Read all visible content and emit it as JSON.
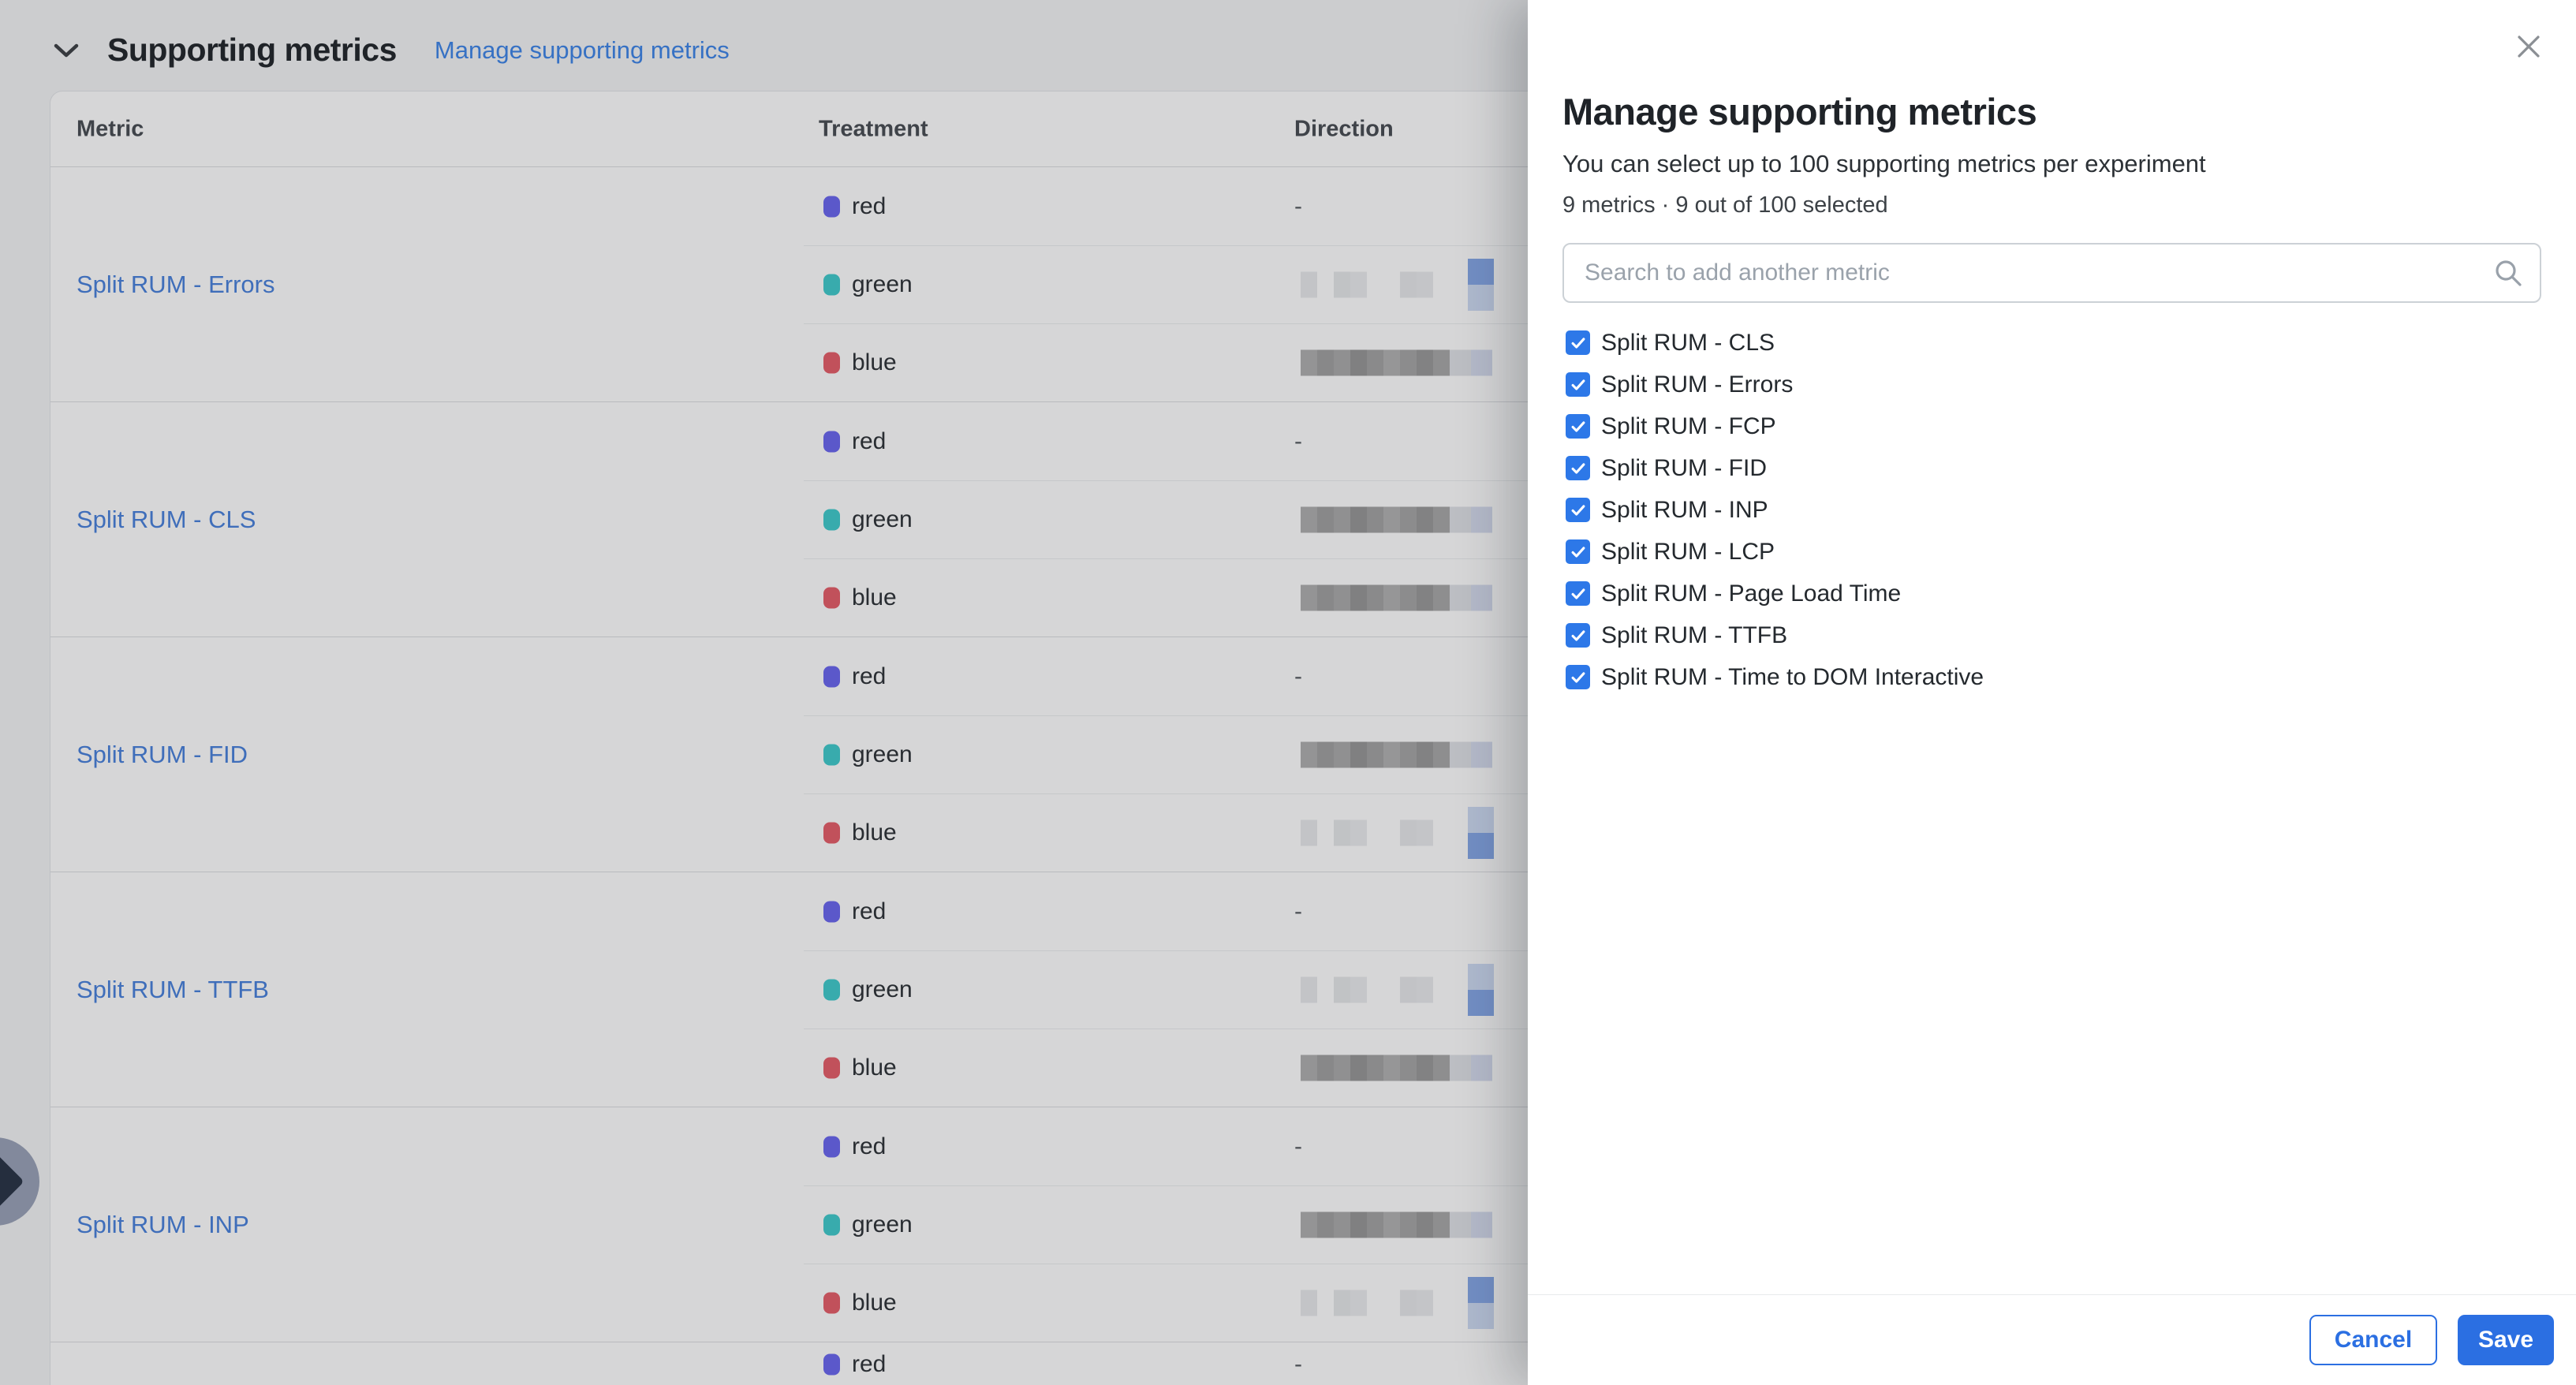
{
  "colors": {
    "accent": "#2b6fe2",
    "checkbox_blue": "#2d78e8",
    "link_blue": "#4a82dc",
    "badge_blue": "#87a9e8",
    "treatment_chips": {
      "red": "#6c68f0",
      "green": "#41cccd",
      "blue": "#e65f6a"
    }
  },
  "icons": {
    "section_chevron": "chevron-down-icon",
    "search": "search-icon",
    "close": "close-icon",
    "fab": "chevron-right-icon"
  },
  "redaction": {
    "dark_bars": [
      "#b0b0b0",
      "#a2a2a2",
      "#ababab",
      "#989898",
      "#a4a4a4",
      "#b3b3b3",
      "#a6a6a6",
      "#9a9a9a",
      "#a9a9a9"
    ],
    "faint_bars": [
      "#e9eaec",
      null,
      "#e6e8ea",
      "#ebecee",
      null,
      null,
      "#e7e9eb",
      "#eaebed",
      null
    ],
    "tail_pair": [
      "#e0e3e7",
      "#d6ddef"
    ],
    "badge_blue": "#87a9e8",
    "badge_companion": "#cfdcf4"
  },
  "section": {
    "title": "Supporting metrics",
    "manage_link": "Manage supporting metrics"
  },
  "table": {
    "columns": [
      "Metric",
      "Treatment",
      "Direction"
    ],
    "groups": [
      {
        "metric": "Split RUM - Errors",
        "rows": [
          {
            "treatment": "red",
            "direction": "-"
          },
          {
            "treatment": "green",
            "redact": {
              "bars": "faint",
              "tail": "badge-top"
            }
          },
          {
            "treatment": "blue",
            "redact": {
              "bars": "dark",
              "tail": "pair"
            }
          }
        ]
      },
      {
        "metric": "Split RUM - CLS",
        "rows": [
          {
            "treatment": "red",
            "direction": "-"
          },
          {
            "treatment": "green",
            "redact": {
              "bars": "dark",
              "tail": "pair"
            }
          },
          {
            "treatment": "blue",
            "redact": {
              "bars": "dark",
              "tail": "pair"
            }
          }
        ]
      },
      {
        "metric": "Split RUM - FID",
        "rows": [
          {
            "treatment": "red",
            "direction": "-"
          },
          {
            "treatment": "green",
            "redact": {
              "bars": "dark",
              "tail": "pair"
            }
          },
          {
            "treatment": "blue",
            "redact": {
              "bars": "faint",
              "tail": "badge-bottom"
            }
          }
        ]
      },
      {
        "metric": "Split RUM - TTFB",
        "rows": [
          {
            "treatment": "red",
            "direction": "-"
          },
          {
            "treatment": "green",
            "redact": {
              "bars": "faint",
              "tail": "badge-bottom"
            }
          },
          {
            "treatment": "blue",
            "redact": {
              "bars": "dark",
              "tail": "pair"
            }
          }
        ]
      },
      {
        "metric": "Split RUM - INP",
        "rows": [
          {
            "treatment": "red",
            "direction": "-"
          },
          {
            "treatment": "green",
            "redact": {
              "bars": "dark",
              "tail": "pair"
            }
          },
          {
            "treatment": "blue",
            "redact": {
              "bars": "faint",
              "tail": "badge-top"
            }
          }
        ]
      },
      {
        "metric": "",
        "partial": true,
        "rows": [
          {
            "treatment": "red",
            "direction": "-"
          }
        ]
      }
    ]
  },
  "panel": {
    "title": "Manage supporting metrics",
    "subtitle": "You can select up to 100 supporting metrics per experiment",
    "count_line": "9 metrics · 9 out of 100 selected",
    "search_placeholder": "Search to add another metric",
    "metrics": [
      {
        "label": "Split RUM - CLS",
        "checked": true
      },
      {
        "label": "Split RUM - Errors",
        "checked": true
      },
      {
        "label": "Split RUM - FCP",
        "checked": true
      },
      {
        "label": "Split RUM - FID",
        "checked": true
      },
      {
        "label": "Split RUM - INP",
        "checked": true
      },
      {
        "label": "Split RUM - LCP",
        "checked": true
      },
      {
        "label": "Split RUM - Page Load Time",
        "checked": true
      },
      {
        "label": "Split RUM - TTFB",
        "checked": true
      },
      {
        "label": "Split RUM - Time to DOM Interactive",
        "checked": true
      }
    ],
    "cancel_label": "Cancel",
    "save_label": "Save"
  }
}
